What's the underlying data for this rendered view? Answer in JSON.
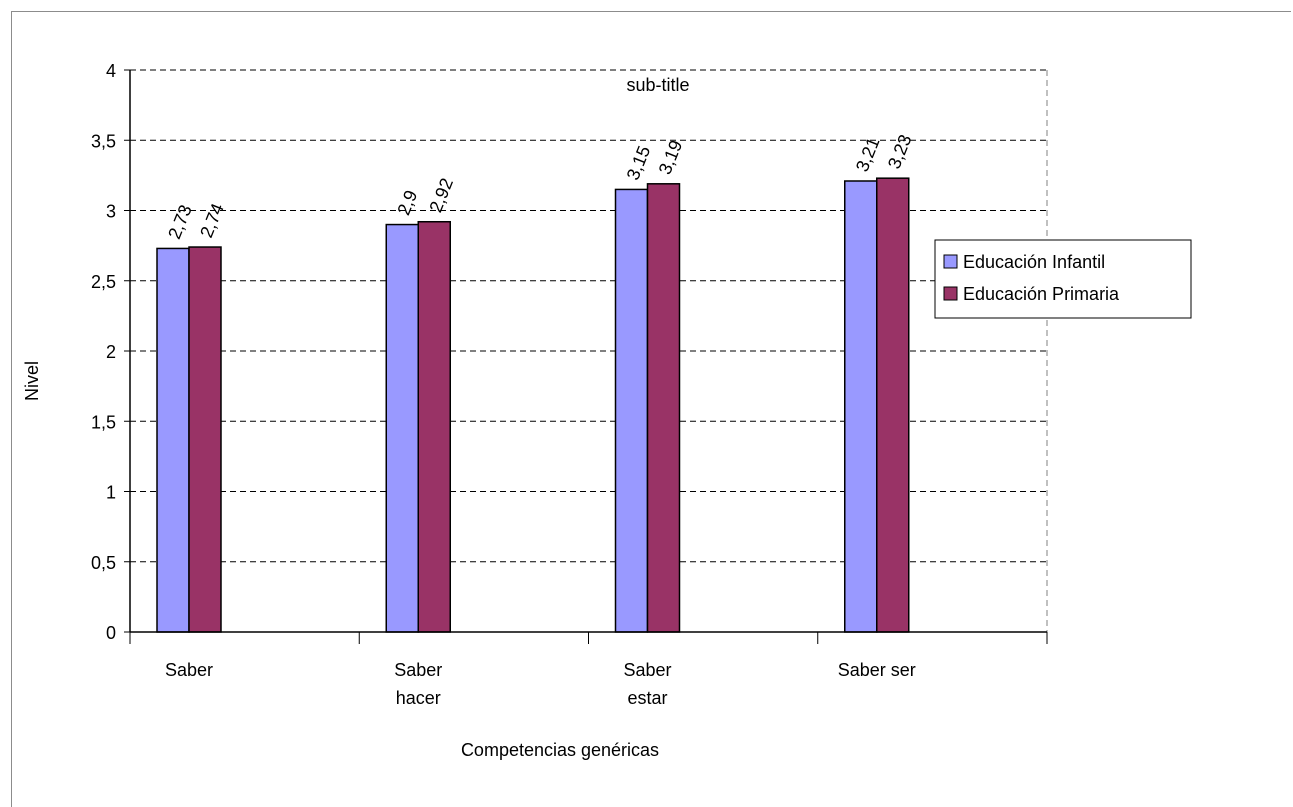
{
  "chart_data": {
    "type": "bar",
    "title": "sub-title",
    "xlabel": "Competencias genéricas",
    "ylabel": "Nivel",
    "categories": [
      [
        "Saber"
      ],
      [
        "Saber",
        "hacer"
      ],
      [
        "Saber",
        "estar"
      ],
      [
        "Saber ser"
      ]
    ],
    "series": [
      {
        "name": "Educación Infantil",
        "color": "#9999ff",
        "values": [
          2.73,
          2.9,
          3.15,
          3.21
        ],
        "labels": [
          "2,73",
          "2,9",
          "3,15",
          "3,21"
        ]
      },
      {
        "name": "Educación Primaria",
        "color": "#993366",
        "values": [
          2.74,
          2.92,
          3.19,
          3.23
        ],
        "labels": [
          "2,74",
          "2,92",
          "3,19",
          "3,23"
        ]
      }
    ],
    "ylim": [
      0,
      4
    ],
    "yticks": [
      0,
      0.5,
      1,
      1.5,
      2,
      2.5,
      3,
      3.5,
      4
    ],
    "ytick_labels": [
      "0",
      "0,5",
      "1",
      "1,5",
      "2",
      "2,5",
      "3",
      "3,5",
      "4"
    ],
    "grid": "horizontal dashed",
    "legend_position": "right"
  }
}
